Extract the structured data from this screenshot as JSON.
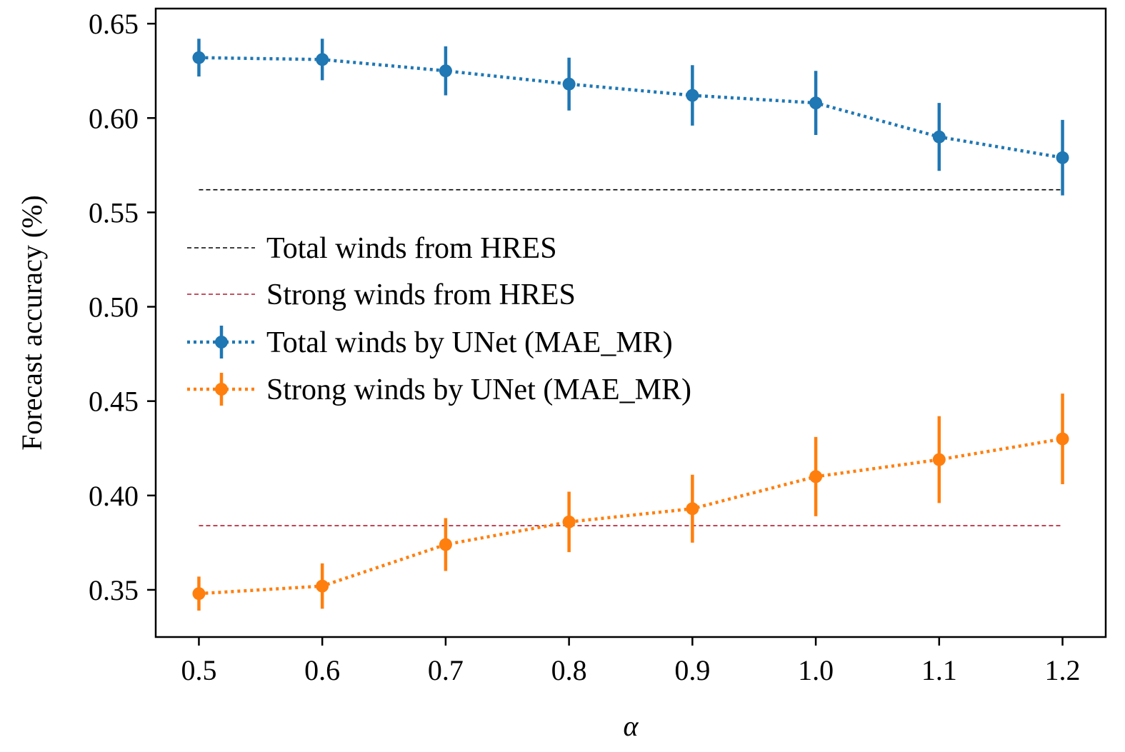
{
  "chart_data": {
    "type": "line",
    "title": "",
    "xlabel": "α",
    "ylabel": "Forecast accuracy (%)",
    "x": [
      0.5,
      0.6,
      0.7,
      0.8,
      0.9,
      1.0,
      1.1,
      1.2
    ],
    "xticks": [
      "0.5",
      "0.6",
      "0.7",
      "0.8",
      "0.9",
      "1.0",
      "1.1",
      "1.2"
    ],
    "yticks": [
      "0.35",
      "0.40",
      "0.45",
      "0.50",
      "0.55",
      "0.60",
      "0.65"
    ],
    "xlim": [
      0.465,
      1.235
    ],
    "ylim": [
      0.325,
      0.658
    ],
    "grid": false,
    "legend_position": "center-left",
    "series": [
      {
        "name": "Total winds by UNet (MAE_MR)",
        "color": "#1f77b4",
        "style": "dotted-errorbar",
        "values": [
          0.632,
          0.631,
          0.625,
          0.618,
          0.612,
          0.608,
          0.59,
          0.579
        ],
        "error": [
          0.01,
          0.011,
          0.013,
          0.014,
          0.016,
          0.017,
          0.018,
          0.02
        ]
      },
      {
        "name": "Strong winds by UNet (MAE_MR)",
        "color": "#ff7f0e",
        "style": "dotted-errorbar",
        "values": [
          0.348,
          0.352,
          0.374,
          0.386,
          0.393,
          0.41,
          0.419,
          0.43
        ],
        "error": [
          0.009,
          0.012,
          0.014,
          0.016,
          0.018,
          0.021,
          0.023,
          0.024
        ]
      }
    ],
    "reference_lines": [
      {
        "name": "Total winds from HRES",
        "color": "#000000",
        "style": "dashed",
        "value": 0.562,
        "x_range": [
          0.5,
          1.2
        ]
      },
      {
        "name": "Strong winds from HRES",
        "color": "#b2182b",
        "style": "dashed",
        "value": 0.384,
        "x_range": [
          0.5,
          1.2
        ]
      }
    ]
  }
}
